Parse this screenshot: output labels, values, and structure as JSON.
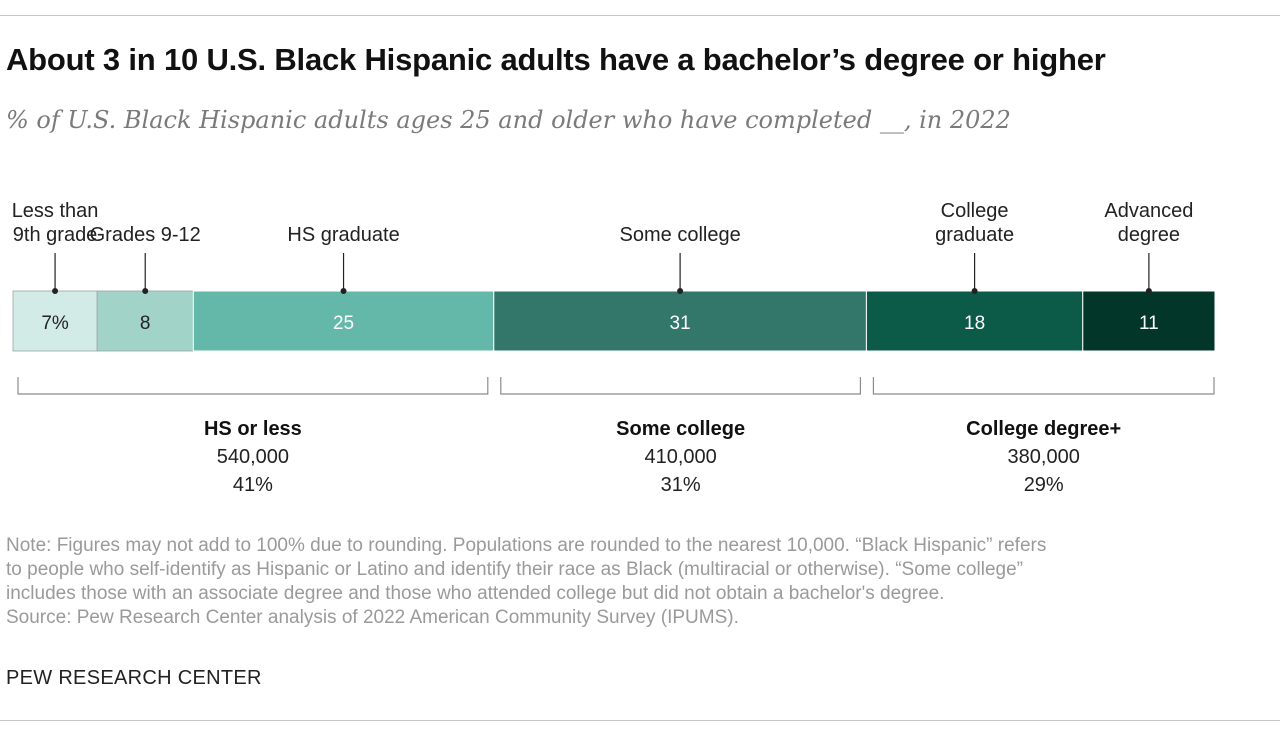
{
  "title": "About 3 in 10 U.S. Black Hispanic adults have a bachelor’s degree or higher",
  "subtitle": "% of U.S. Black Hispanic adults ages 25 and older who have completed __, in 2022",
  "chart_data": {
    "type": "bar",
    "orientation": "horizontal-stacked",
    "segments": [
      {
        "label": [
          "Less than",
          "9th grade"
        ],
        "value": 7,
        "display": "7%",
        "color": "#d3ebe6",
        "text_color": "#222222"
      },
      {
        "label": [
          "Grades 9-12"
        ],
        "value": 8,
        "display": "8",
        "color": "#a2d3c8",
        "text_color": "#222222"
      },
      {
        "label": [
          "HS graduate"
        ],
        "value": 25,
        "display": "25",
        "color": "#64b8aa",
        "text_color": "#ffffff"
      },
      {
        "label": [
          "Some college"
        ],
        "value": 31,
        "display": "31",
        "color": "#33766a",
        "text_color": "#ffffff"
      },
      {
        "label": [
          "College",
          "graduate"
        ],
        "value": 18,
        "display": "18",
        "color": "#0b5b48",
        "text_color": "#ffffff"
      },
      {
        "label": [
          "Advanced",
          "degree"
        ],
        "value": 11,
        "display": "11",
        "color": "#023628",
        "text_color": "#ffffff"
      }
    ],
    "groups": [
      {
        "label": "HS or less",
        "from": 0,
        "to": 2,
        "population": "540,000",
        "share": "41%"
      },
      {
        "label": "Some college",
        "from": 3,
        "to": 3,
        "population": "410,000",
        "share": "31%"
      },
      {
        "label": "College degree+",
        "from": 4,
        "to": 5,
        "population": "380,000",
        "share": "29%"
      }
    ]
  },
  "note": [
    "Note: Figures may not add to 100% due to rounding. Populations are rounded to the nearest 10,000. “Black Hispanic” refers",
    "to people who self-identify as Hispanic or Latino and identify their race as Black (multiracial or otherwise). “Some college”",
    "includes those with an associate degree and those who attended college but did not obtain a bachelor's degree.",
    "Source: Pew Research Center analysis of 2022 American Community Survey (IPUMS)."
  ],
  "brand": "PEW RESEARCH CENTER"
}
